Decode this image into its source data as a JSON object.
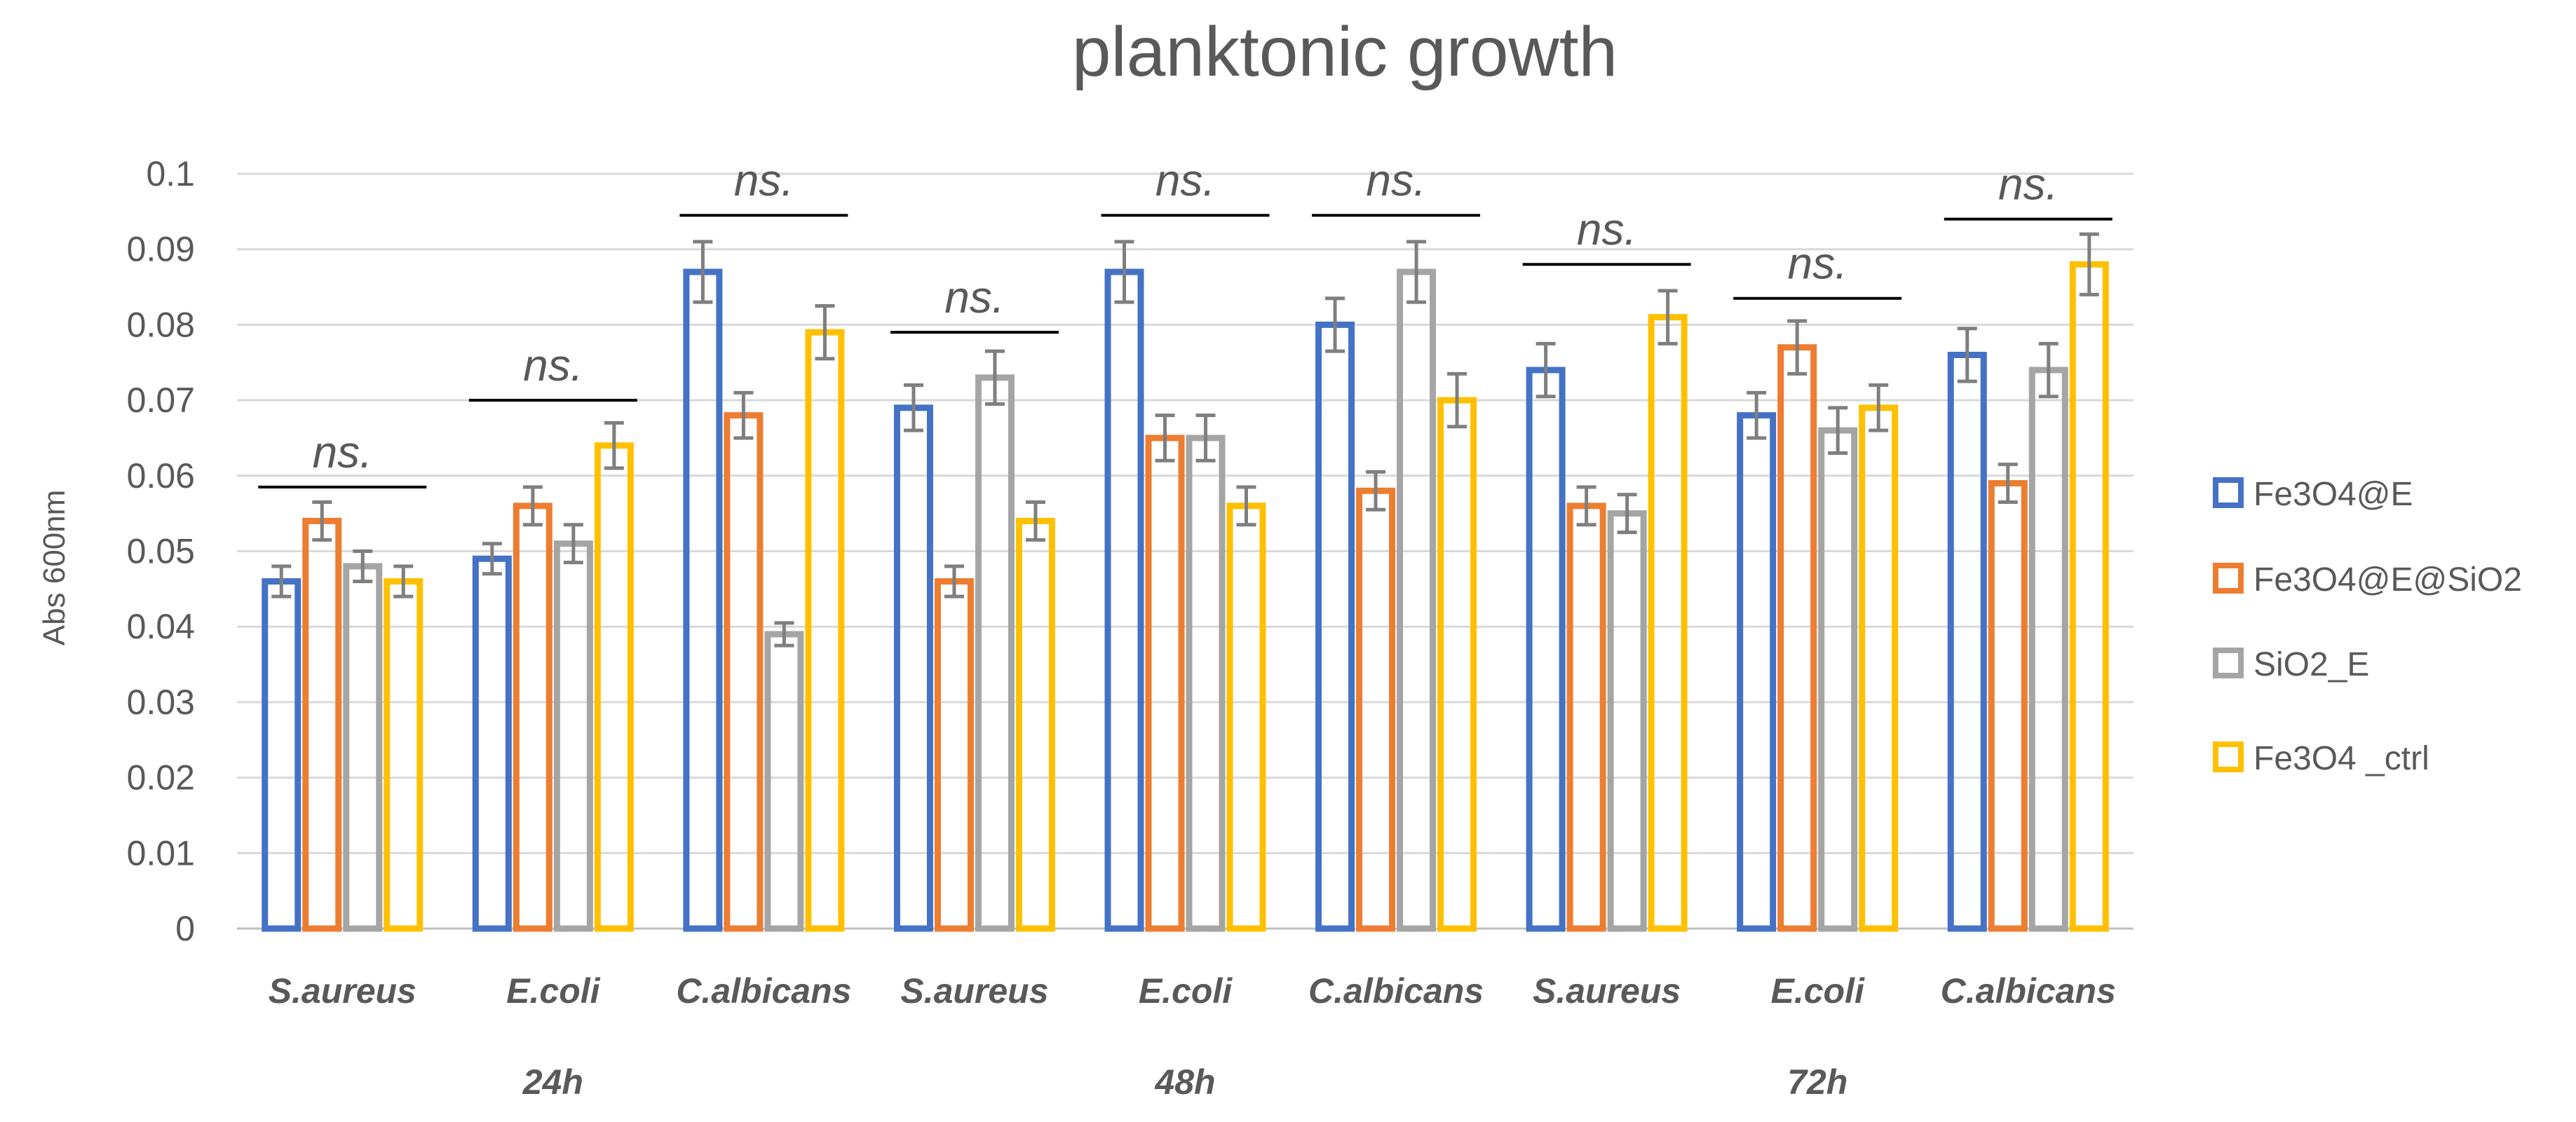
{
  "chart_data": {
    "type": "bar",
    "title": "planktonic growth",
    "xlabel": "",
    "ylabel": "Abs 600nm",
    "ylim": [
      0,
      0.1
    ],
    "yticks": [
      "0",
      "0.01",
      "0.02",
      "0.03",
      "0.04",
      "0.05",
      "0.06",
      "0.07",
      "0.08",
      "0.09",
      "0.1"
    ],
    "grid": true,
    "legend_position": "right",
    "categories": [
      "S.aureus",
      "E.coli",
      "C.albicans",
      "S.aureus",
      "E.coli",
      "C.albicans",
      "S.aureus",
      "E.coli",
      "C.albicans"
    ],
    "groups": [
      "24h",
      "48h",
      "72h"
    ],
    "series": [
      {
        "name": "Fe3O4@E",
        "color": "#4472C4",
        "values": [
          0.046,
          0.049,
          0.087,
          0.069,
          0.087,
          0.08,
          0.074,
          0.068,
          0.076
        ],
        "errors": [
          0.002,
          0.002,
          0.004,
          0.003,
          0.004,
          0.0035,
          0.0035,
          0.003,
          0.0035
        ]
      },
      {
        "name": "Fe3O4@E@SiO2",
        "color": "#ED7D31",
        "values": [
          0.054,
          0.056,
          0.068,
          0.046,
          0.065,
          0.058,
          0.056,
          0.077,
          0.059
        ],
        "errors": [
          0.0025,
          0.0025,
          0.003,
          0.002,
          0.003,
          0.0025,
          0.0025,
          0.0035,
          0.0025
        ]
      },
      {
        "name": "SiO2_E",
        "color": "#A5A5A5",
        "values": [
          0.048,
          0.051,
          0.039,
          0.073,
          0.065,
          0.087,
          0.055,
          0.066,
          0.074
        ],
        "errors": [
          0.002,
          0.0025,
          0.0015,
          0.0035,
          0.003,
          0.004,
          0.0025,
          0.003,
          0.0035
        ]
      },
      {
        "name": "Fe3O4 _ctrl",
        "color": "#FFC000",
        "values": [
          0.046,
          0.064,
          0.079,
          0.054,
          0.056,
          0.07,
          0.081,
          0.069,
          0.088
        ],
        "errors": [
          0.002,
          0.003,
          0.0035,
          0.0025,
          0.0025,
          0.0035,
          0.0035,
          0.003,
          0.004
        ]
      }
    ],
    "annotations": [
      {
        "text": "ns.",
        "value": 0.0585
      },
      {
        "text": "ns.",
        "value": 0.07
      },
      {
        "text": "ns.",
        "value": 0.0945
      },
      {
        "text": "ns.",
        "value": 0.079
      },
      {
        "text": "ns.",
        "value": 0.0945
      },
      {
        "text": "ns.",
        "value": 0.0945
      },
      {
        "text": "ns.",
        "value": 0.088
      },
      {
        "text": "ns.",
        "value": 0.0835
      },
      {
        "text": "ns.",
        "value": 0.094
      }
    ]
  }
}
